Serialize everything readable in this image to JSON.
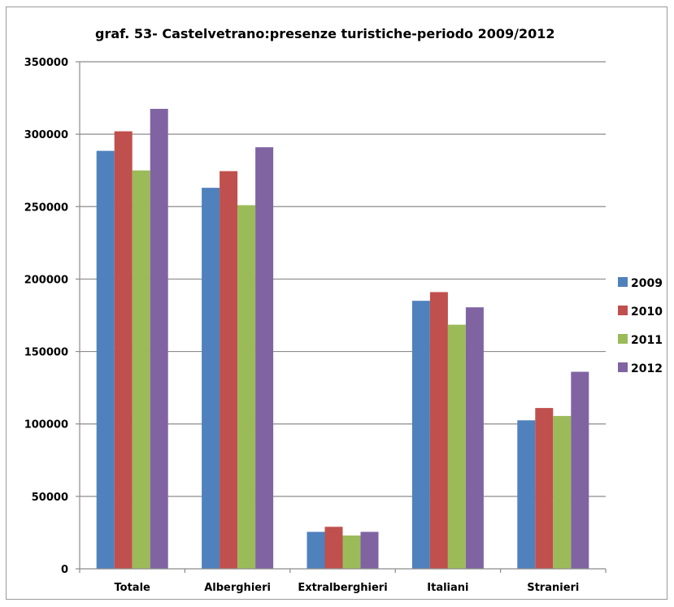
{
  "chart_data": {
    "type": "bar",
    "title": "graf. 53-   Castelvetrano:presenze turistiche-periodo 2009/2012",
    "xlabel": "",
    "ylabel": "",
    "categories": [
      "Totale",
      "Alberghieri",
      "Extralberghieri",
      "Italiani",
      "Stranieri"
    ],
    "series": [
      {
        "name": "2009",
        "color": "#4f81bd",
        "values": [
          288500,
          263000,
          25500,
          185000,
          102500
        ]
      },
      {
        "name": "2010",
        "color": "#c0504d",
        "values": [
          302000,
          274500,
          29000,
          191000,
          111000
        ]
      },
      {
        "name": "2011",
        "color": "#9bbb59",
        "values": [
          275000,
          251000,
          23000,
          168500,
          105500
        ]
      },
      {
        "name": "2012",
        "color": "#8064a2",
        "values": [
          317500,
          291000,
          25500,
          180500,
          136000
        ]
      }
    ],
    "ylim": [
      0,
      350000
    ],
    "yticks": [
      0,
      50000,
      100000,
      150000,
      200000,
      250000,
      300000,
      350000
    ],
    "grid": true,
    "legend": "right"
  }
}
